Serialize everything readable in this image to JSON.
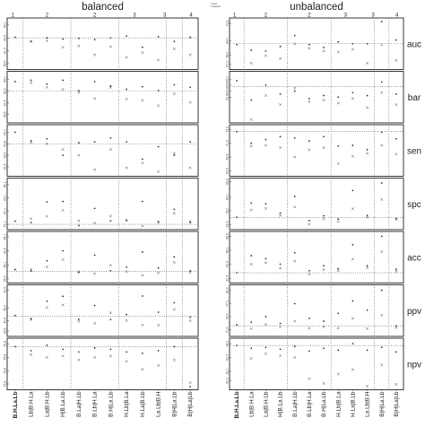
{
  "chart_data": {
    "type": "scatter",
    "columns": [
      "balanced",
      "unbalanced"
    ],
    "rows": [
      "auc",
      "bar",
      "sen",
      "spc",
      "acc",
      "ppv",
      "npv"
    ],
    "group_numbers": [
      "1",
      "2",
      "2",
      "3",
      "3",
      "4"
    ],
    "x_categories": [
      "B.H.La.Lb",
      "Lb|B.H.La",
      "La|B.H.Lb",
      "H|B.La.Lb",
      "B.La|H.Lb",
      "B.Lb|H.La",
      "B.H|La.Lb",
      "H.Lb|B.La",
      "H.La|B.Lb",
      "La.Lb|B.H",
      "B|H|La.Lb",
      "B|H|La|Lb"
    ],
    "legend": [
      "fused",
      "stopped"
    ],
    "panels": {
      "balanced": {
        "auc": {
          "yticks": [
            "66.1",
            "63.9",
            "61.7",
            "59.5"
          ],
          "ylim": [
            58.8,
            67.0
          ],
          "ref": 63.9,
          "fused": [
            64.0,
            63.3,
            63.9,
            63.7,
            63.8,
            63.6,
            63.9,
            64.2,
            62.3,
            64.1,
            63.3,
            64.0
          ],
          "stopped": [
            null,
            63.3,
            63.4,
            62.3,
            62.5,
            61.0,
            62.4,
            60.6,
            61.4,
            60.1,
            62.0,
            61.0
          ]
        },
        "bar": {
          "yticks": [
            "64.0",
            "62.2",
            "60.4",
            "58.6"
          ],
          "ylim": [
            57.6,
            65.0
          ],
          "ref": 62.2,
          "fused": [
            63.7,
            63.9,
            63.3,
            63.9,
            62.3,
            63.7,
            63.0,
            62.5,
            62.9,
            62.3,
            63.2,
            62.8
          ],
          "stopped": [
            null,
            63.5,
            62.8,
            62.5,
            62.0,
            61.1,
            62.8,
            61.0,
            60.8,
            60.0,
            61.8,
            60.5
          ]
        },
        "sen": {
          "yticks": [
            "65.0",
            "63.8",
            "62.6",
            "61.4"
          ],
          "ylim": [
            60.6,
            65.6
          ],
          "ref": 63.8,
          "fused": [
            65.0,
            64.1,
            64.3,
            62.6,
            63.9,
            64.0,
            64.4,
            64.0,
            62.2,
            63.5,
            62.6,
            64.0
          ],
          "stopped": [
            null,
            63.9,
            63.8,
            63.2,
            62.6,
            61.1,
            63.2,
            61.3,
            61.8,
            60.9,
            62.8,
            61.3
          ]
        },
        "spc": {
          "yticks": [
            "66.1",
            "63.1",
            "60.1",
            "57.1"
          ],
          "ylim": [
            56.3,
            67.2
          ],
          "ref": 57.1,
          "fused": [
            57.8,
            57.5,
            62.2,
            62.3,
            56.8,
            60.7,
            57.9,
            58.0,
            62.3,
            57.7,
            60.5,
            57.5
          ],
          "stopped": [
            null,
            58.4,
            58.9,
            60.3,
            57.9,
            57.4,
            59.0,
            58.0,
            56.7,
            57.5,
            59.6,
            57.8
          ]
        },
        "acc": {
          "yticks": [
            "66.1",
            "62.6",
            "59.1",
            "55.6"
          ],
          "ylim": [
            55.0,
            67.0
          ],
          "ref": 57.5,
          "fused": [
            57.9,
            57.6,
            60.1,
            62.6,
            57.2,
            61.5,
            57.6,
            58.5,
            62.3,
            58.3,
            61.1,
            57.6
          ],
          "stopped": [
            null,
            58.0,
            58.6,
            60.4,
            57.4,
            56.9,
            59.0,
            57.4,
            56.5,
            57.1,
            59.7,
            57.2
          ]
        },
        "ppv": {
          "yticks": [
            "61.6",
            "49.3",
            "40.8",
            "33.6"
          ],
          "ylim": [
            31.2,
            63.8
          ],
          "ref": 43.8,
          "fused": [
            44.1,
            42.0,
            53.9,
            57.2,
            41.6,
            51.0,
            41.4,
            44.8,
            57.4,
            46.4,
            52.9,
            43.0
          ],
          "stopped": [
            null,
            41.3,
            49.6,
            51.3,
            40.2,
            38.9,
            46.0,
            40.8,
            37.7,
            37.6,
            48.4,
            40.6
          ]
        },
        "npv": {
          "yticks": [
            "75.8",
            "74.8",
            "73.8",
            "72.8"
          ],
          "ylim": [
            72.5,
            76.1
          ],
          "ref": 75.6,
          "fused": [
            75.6,
            75.3,
            75.7,
            75.4,
            75.2,
            75.5,
            75.4,
            75.2,
            75.1,
            75.3,
            75.6,
            72.6
          ],
          "stopped": [
            null,
            75.0,
            74.8,
            74.9,
            74.6,
            74.8,
            74.9,
            74.5,
            73.9,
            74.2,
            74.6,
            72.9
          ]
        }
      },
      "unbalanced": {
        "auc": {
          "yticks": [
            "71.6",
            "69.7",
            "68.2",
            "67.2"
          ],
          "ylim": [
            66.8,
            72.0
          ],
          "ref": 69.4,
          "fused": [
            69.3,
            68.7,
            68.6,
            69.1,
            70.3,
            69.3,
            69.0,
            69.6,
            69.4,
            69.4,
            71.8,
            69.8
          ],
          "stopped": [
            null,
            67.3,
            68.1,
            67.8,
            69.4,
            68.9,
            68.6,
            68.5,
            68.8,
            67.3,
            69.3,
            67.6
          ]
        },
        "bar": {
          "yticks": [
            "65.0",
            "64.6",
            "64.2",
            "63.8"
          ],
          "ylim": [
            62.2,
            65.4
          ],
          "ref": 64.5,
          "fused": [
            64.9,
            63.6,
            64.6,
            64.0,
            64.2,
            63.7,
            63.9,
            63.8,
            64.1,
            63.9,
            64.8,
            64.0
          ],
          "stopped": [
            null,
            62.3,
            63.9,
            63.3,
            64.4,
            63.5,
            63.6,
            63.4,
            63.7,
            63.1,
            64.1,
            63.3
          ]
        },
        "sen": {
          "yticks": [
            "73.2",
            "71.3",
            "69.4",
            "67.5"
          ],
          "ylim": [
            67.0,
            73.6
          ],
          "ref": 72.9,
          "fused": [
            72.9,
            71.3,
            71.8,
            72.2,
            72.0,
            71.6,
            72.2,
            70.9,
            71.0,
            70.4,
            72.8,
            71.9
          ],
          "stopped": [
            null,
            70.9,
            71.0,
            70.7,
            69.4,
            70.4,
            70.7,
            68.5,
            69.5,
            69.9,
            71.0,
            69.8
          ]
        },
        "spc": {
          "yticks": [
            "69.9",
            "64.1",
            "59.0",
            "53.9"
          ],
          "ylim": [
            52.6,
            70.6
          ],
          "ref": 56.4,
          "fused": [
            56.6,
            61.9,
            61.6,
            58.2,
            64.4,
            55.3,
            57.1,
            55.9,
            66.6,
            57.2,
            69.4,
            56.1
          ],
          "stopped": [
            null,
            59.3,
            59.9,
            57.3,
            60.4,
            54.0,
            56.0,
            55.0,
            59.8,
            56.5,
            63.2,
            55.7
          ]
        },
        "acc": {
          "yticks": [
            "68.9",
            "66.1",
            "63.3",
            "60.5"
          ],
          "ylim": [
            59.9,
            69.5
          ],
          "ref": 61.6,
          "fused": [
            61.6,
            65.0,
            64.4,
            63.3,
            65.6,
            62.0,
            63.0,
            62.4,
            67.2,
            63.0,
            68.9,
            62.3
          ],
          "stopped": [
            null,
            63.3,
            63.6,
            62.5,
            63.9,
            61.3,
            62.2,
            62.0,
            64.3,
            62.6,
            65.8,
            61.9
          ]
        },
        "ppv": {
          "yticks": [
            "80.2",
            "77.3",
            "74.5",
            "71.6"
          ],
          "ylim": [
            70.6,
            81.0
          ],
          "ref": 72.5,
          "fused": [
            72.7,
            73.3,
            74.5,
            73.0,
            77.3,
            74.1,
            73.5,
            75.2,
            77.9,
            75.9,
            80.2,
            72.5
          ],
          "stopped": [
            null,
            71.9,
            72.8,
            72.3,
            73.5,
            72.0,
            72.3,
            72.0,
            74.1,
            71.9,
            74.8,
            72.1
          ]
        },
        "npv": {
          "yticks": [
            "64.0",
            "62.5",
            "61.0",
            "60.0"
          ],
          "ylim": [
            59.2,
            64.4
          ],
          "ref": 63.8,
          "fused": [
            63.8,
            63.5,
            63.6,
            63.4,
            63.7,
            63.2,
            63.5,
            63.3,
            64.0,
            63.3,
            63.6,
            63.1
          ],
          "stopped": [
            null,
            62.4,
            62.9,
            62.7,
            62.5,
            60.2,
            59.7,
            60.7,
            61.2,
            59.4,
            61.7,
            59.6
          ]
        }
      }
    }
  }
}
